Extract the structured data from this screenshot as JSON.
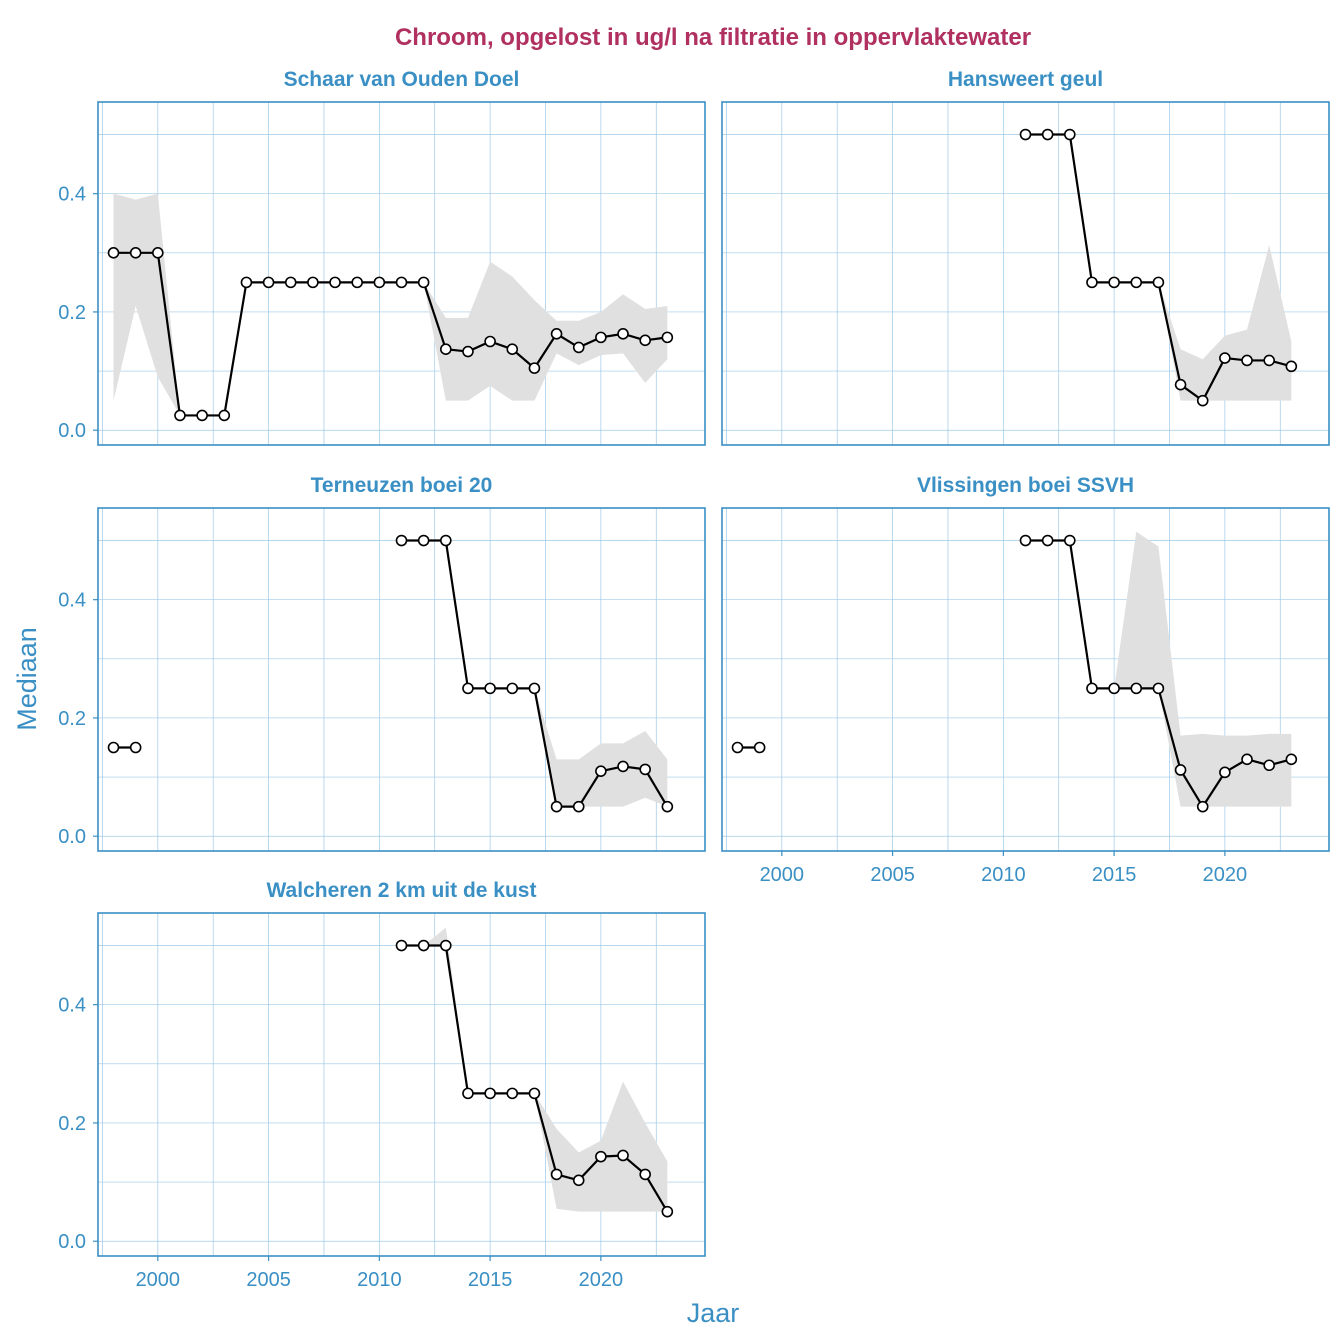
{
  "chart_data": {
    "type": "line",
    "title": "Chroom, opgelost in ug/l na filtratie in oppervlaktewater",
    "xlabel": "Jaar",
    "ylabel": "Mediaan",
    "xlim": [
      1997.3,
      2024.7
    ],
    "ylim": [
      -0.025,
      0.555
    ],
    "x_ticks": [
      2000,
      2005,
      2010,
      2015,
      2020
    ],
    "y_ticks": [
      0.0,
      0.2,
      0.4
    ],
    "y_tick_labels": [
      "0.0",
      "0.2",
      "0.4"
    ],
    "grid": true,
    "legend": "none",
    "colors": {
      "title": "#b03060",
      "strip": "#3a8fc4",
      "axis": "#3a8fc4",
      "grid": "#9ec9e6",
      "ribbon": "#e0e0e0",
      "line": "#000000",
      "point_fill": "#ffffff"
    },
    "panels": [
      {
        "title": "Schaar van Ouden Doel",
        "segments": [
          {
            "x": [
              1998,
              1999,
              2000,
              2001,
              2002,
              2003,
              2004,
              2005,
              2006,
              2007,
              2008,
              2009,
              2010,
              2011,
              2012,
              2013,
              2014,
              2015,
              2016,
              2017,
              2018,
              2019,
              2020,
              2021,
              2022,
              2023
            ],
            "median": [
              0.3,
              0.3,
              0.3,
              0.025,
              0.025,
              0.025,
              0.25,
              0.25,
              0.25,
              0.25,
              0.25,
              0.25,
              0.25,
              0.25,
              0.25,
              0.137,
              0.133,
              0.15,
              0.137,
              0.105,
              0.163,
              0.14,
              0.157,
              0.163,
              0.152,
              0.157
            ],
            "lower": [
              0.05,
              0.21,
              0.09,
              0.025,
              0.025,
              0.025,
              0.25,
              0.25,
              0.25,
              0.25,
              0.25,
              0.25,
              0.25,
              0.25,
              0.25,
              0.05,
              0.05,
              0.075,
              0.05,
              0.05,
              0.13,
              0.11,
              0.127,
              0.13,
              0.08,
              0.12
            ],
            "upper": [
              0.4,
              0.39,
              0.4,
              0.025,
              0.025,
              0.025,
              0.25,
              0.25,
              0.25,
              0.25,
              0.25,
              0.25,
              0.25,
              0.25,
              0.25,
              0.19,
              0.19,
              0.285,
              0.26,
              0.22,
              0.185,
              0.185,
              0.2,
              0.23,
              0.205,
              0.21
            ]
          }
        ]
      },
      {
        "title": "Hansweert geul",
        "segments": [
          {
            "x": [
              2011,
              2012,
              2013,
              2014,
              2015,
              2016,
              2017,
              2018,
              2019,
              2020,
              2021,
              2022,
              2023
            ],
            "median": [
              0.5,
              0.5,
              0.5,
              0.25,
              0.25,
              0.25,
              0.25,
              0.077,
              0.05,
              0.122,
              0.118,
              0.118,
              0.108
            ],
            "lower": [
              0.5,
              0.5,
              0.5,
              0.25,
              0.25,
              0.25,
              0.25,
              0.05,
              0.05,
              0.05,
              0.05,
              0.05,
              0.05
            ],
            "upper": [
              0.5,
              0.5,
              0.5,
              0.25,
              0.25,
              0.25,
              0.25,
              0.137,
              0.12,
              0.16,
              0.17,
              0.313,
              0.15
            ]
          }
        ]
      },
      {
        "title": "Terneuzen boei 20",
        "segments": [
          {
            "x": [
              1998,
              1999
            ],
            "median": [
              0.15,
              0.15
            ],
            "lower": [
              0.15,
              0.15
            ],
            "upper": [
              0.15,
              0.15
            ]
          },
          {
            "x": [
              2011,
              2012,
              2013,
              2014,
              2015,
              2016,
              2017,
              2018,
              2019,
              2020,
              2021,
              2022,
              2023
            ],
            "median": [
              0.5,
              0.5,
              0.5,
              0.25,
              0.25,
              0.25,
              0.25,
              0.05,
              0.05,
              0.11,
              0.118,
              0.113,
              0.05
            ],
            "lower": [
              0.5,
              0.5,
              0.5,
              0.25,
              0.25,
              0.25,
              0.25,
              0.05,
              0.05,
              0.05,
              0.05,
              0.065,
              0.05
            ],
            "upper": [
              0.5,
              0.5,
              0.5,
              0.25,
              0.25,
              0.25,
              0.25,
              0.13,
              0.13,
              0.157,
              0.157,
              0.178,
              0.13
            ]
          }
        ]
      },
      {
        "title": "Vlissingen boei SSVH",
        "segments": [
          {
            "x": [
              1998,
              1999
            ],
            "median": [
              0.15,
              0.15
            ],
            "lower": [
              0.15,
              0.15
            ],
            "upper": [
              0.15,
              0.15
            ]
          },
          {
            "x": [
              2011,
              2012,
              2013,
              2014,
              2015,
              2016,
              2017,
              2018,
              2019,
              2020,
              2021,
              2022,
              2023
            ],
            "median": [
              0.5,
              0.5,
              0.5,
              0.25,
              0.25,
              0.25,
              0.25,
              0.112,
              0.05,
              0.108,
              0.13,
              0.12,
              0.13
            ],
            "lower": [
              0.5,
              0.5,
              0.5,
              0.25,
              0.25,
              0.25,
              0.25,
              0.05,
              0.05,
              0.05,
              0.05,
              0.05,
              0.05
            ],
            "upper": [
              0.5,
              0.5,
              0.5,
              0.25,
              0.25,
              0.515,
              0.49,
              0.17,
              0.173,
              0.17,
              0.17,
              0.173,
              0.173
            ]
          }
        ]
      },
      {
        "title": "Walcheren 2 km uit de kust",
        "segments": [
          {
            "x": [
              2011,
              2012,
              2013,
              2014,
              2015,
              2016,
              2017,
              2018,
              2019,
              2020,
              2021,
              2022,
              2023
            ],
            "median": [
              0.5,
              0.5,
              0.5,
              0.25,
              0.25,
              0.25,
              0.25,
              0.113,
              0.103,
              0.143,
              0.145,
              0.113,
              0.05
            ],
            "lower": [
              0.5,
              0.5,
              0.5,
              0.25,
              0.25,
              0.25,
              0.25,
              0.055,
              0.05,
              0.05,
              0.05,
              0.05,
              0.05
            ],
            "upper": [
              0.5,
              0.5,
              0.53,
              0.25,
              0.25,
              0.25,
              0.25,
              0.19,
              0.15,
              0.17,
              0.27,
              0.2,
              0.135
            ]
          }
        ]
      }
    ]
  }
}
